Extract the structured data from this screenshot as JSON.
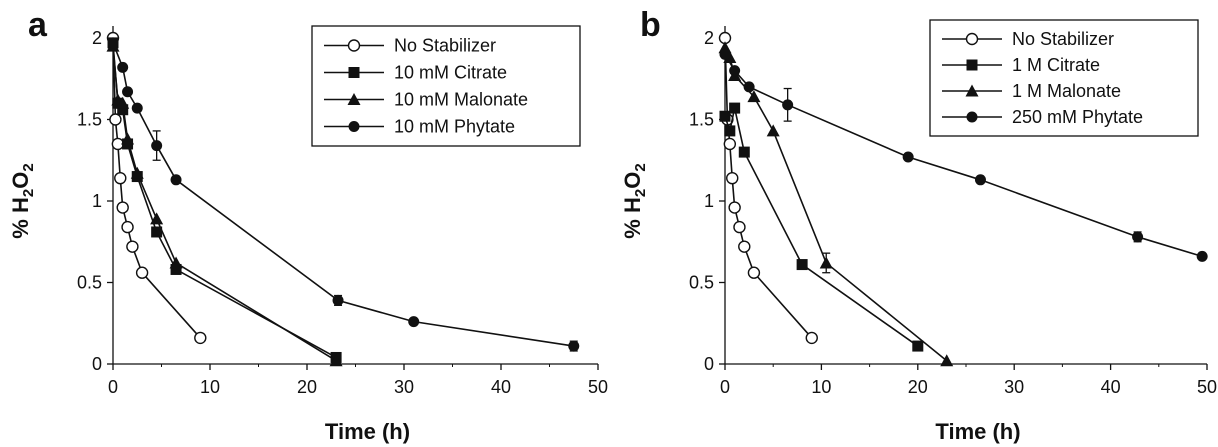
{
  "chart_data": [
    {
      "panel": "a",
      "type": "line",
      "xlabel": "Time (h)",
      "ylabel": "% H2O2",
      "xlim": [
        0,
        50
      ],
      "ylim": [
        0,
        2
      ],
      "xticks": [
        "0",
        "10",
        "20",
        "30",
        "40",
        "50"
      ],
      "yticks": [
        "0",
        "0.5",
        "1",
        "1.5",
        "2"
      ],
      "legend_position": "top-right",
      "grid": false,
      "series": [
        {
          "name": "No Stabilizer",
          "marker": "open-circle",
          "x": [
            0,
            0.25,
            0.5,
            0.75,
            1,
            1.5,
            2,
            3,
            9
          ],
          "y": [
            2.0,
            1.5,
            1.35,
            1.14,
            0.96,
            0.84,
            0.72,
            0.56,
            0.16
          ]
        },
        {
          "name": "10 mM Citrate",
          "marker": "filled-square",
          "x": [
            0,
            0.5,
            1,
            1.5,
            2.5,
            4.5,
            6.5,
            23
          ],
          "y": [
            1.97,
            1.6,
            1.56,
            1.35,
            1.15,
            0.81,
            0.58,
            0.04
          ]
        },
        {
          "name": "10 mM Malonate",
          "marker": "filled-triangle",
          "x": [
            0,
            0.5,
            1,
            1.5,
            2.5,
            4.5,
            6.5,
            23
          ],
          "y": [
            1.95,
            1.62,
            1.6,
            1.38,
            1.17,
            0.89,
            0.62,
            0.02
          ]
        },
        {
          "name": "10 mM Phytate",
          "marker": "filled-circle",
          "x": [
            0,
            1,
            1.5,
            2.5,
            4.5,
            6.5,
            23.2,
            31,
            47.5
          ],
          "y": [
            1.97,
            1.82,
            1.67,
            1.57,
            1.34,
            1.13,
            0.39,
            0.26,
            0.11
          ],
          "yerr": [
            0,
            0,
            0,
            0,
            0.09,
            0,
            0.03,
            0,
            0.03
          ]
        }
      ]
    },
    {
      "panel": "b",
      "type": "line",
      "xlabel": "Time (h)",
      "ylabel": "% H2O2",
      "xlim": [
        0,
        50
      ],
      "ylim": [
        0,
        2
      ],
      "xticks": [
        "0",
        "10",
        "20",
        "30",
        "40",
        "50"
      ],
      "yticks": [
        "0",
        "0.5",
        "1",
        "1.5",
        "2"
      ],
      "legend_position": "top-right",
      "grid": false,
      "series": [
        {
          "name": "No Stabilizer",
          "marker": "open-circle",
          "x": [
            0,
            0.25,
            0.5,
            0.75,
            1,
            1.5,
            2,
            3,
            9
          ],
          "y": [
            2.0,
            1.5,
            1.35,
            1.14,
            0.96,
            0.84,
            0.72,
            0.56,
            0.16
          ]
        },
        {
          "name": "1 M Citrate",
          "marker": "filled-square",
          "x": [
            0,
            0.5,
            1,
            2,
            8,
            20
          ],
          "y": [
            1.52,
            1.43,
            1.57,
            1.3,
            0.61,
            0.11
          ]
        },
        {
          "name": "1 M Malonate",
          "marker": "filled-triangle",
          "x": [
            0,
            0.5,
            1,
            3,
            5,
            10.5,
            23
          ],
          "y": [
            1.94,
            1.88,
            1.77,
            1.64,
            1.43,
            0.62,
            0.02
          ],
          "yerr": [
            0,
            0,
            0,
            0,
            0,
            0.06,
            0
          ]
        },
        {
          "name": "250 mM Phytate",
          "marker": "filled-circle",
          "x": [
            0,
            1,
            2.5,
            6.5,
            19,
            26.5,
            42.8,
            49.5
          ],
          "y": [
            1.9,
            1.8,
            1.7,
            1.59,
            1.27,
            1.13,
            0.78,
            0.66
          ],
          "yerr": [
            0,
            0,
            0,
            0.1,
            0,
            0,
            0.03,
            0
          ]
        }
      ]
    }
  ],
  "colors": {
    "ink": "#111111",
    "background": "#ffffff"
  }
}
